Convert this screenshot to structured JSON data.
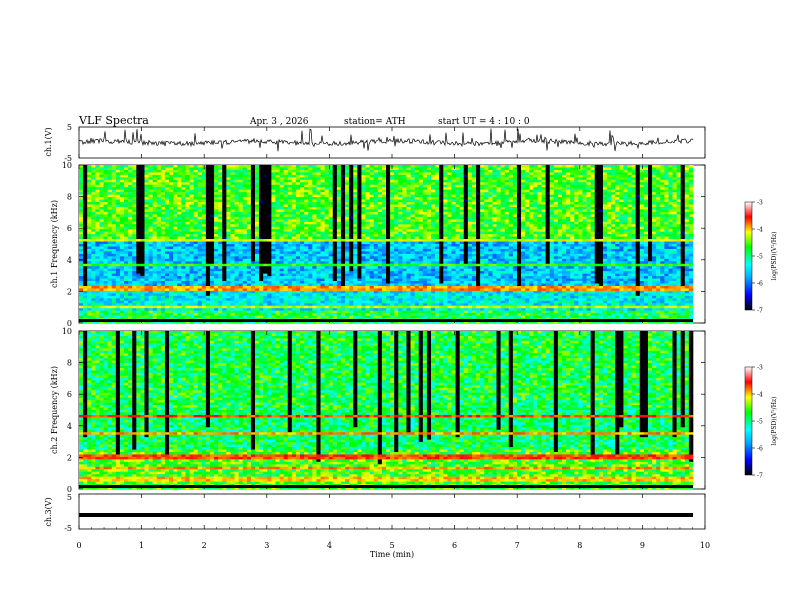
{
  "header": {
    "title": "VLF  Spectra",
    "date": "Apr. 3  , 2026",
    "station": "station= ATH",
    "start_ut": "start  UT  =   4  : 10 : 0"
  },
  "chart_data": [
    {
      "type": "line",
      "panel": "ch1-waveform",
      "ylabel": "ch.1(V)",
      "ylim": [
        -5,
        5
      ],
      "yticks": [
        "5",
        "-5"
      ],
      "xlim": [
        0,
        10
      ],
      "trace_color": "#000000",
      "trace_level": 0.0
    },
    {
      "type": "heatmap",
      "panel": "ch1-spectrogram",
      "ylabel": "ch.1 Frequency  (kHz)",
      "ylim": [
        0,
        10
      ],
      "yticks": [
        "0",
        "2",
        "4",
        "6",
        "8",
        "10"
      ],
      "xlim": [
        0,
        9.8
      ],
      "colorbar": {
        "label": "log(PSD)(V²/Hz)",
        "ticks": [
          "-3",
          "-4",
          "-5",
          "-6",
          "-7"
        ],
        "range": [
          -7,
          -3
        ],
        "colors": [
          "#000000",
          "#0000ff",
          "#00aaff",
          "#00ffff",
          "#00ff00",
          "#ffff00",
          "#ff0000",
          "#ffffff"
        ]
      }
    },
    {
      "type": "heatmap",
      "panel": "ch2-spectrogram",
      "ylabel": "ch.2 Frequency  (kHz)",
      "ylim": [
        0,
        10
      ],
      "yticks": [
        "0",
        "2",
        "4",
        "6",
        "8",
        "10"
      ],
      "xlim": [
        0,
        9.8
      ],
      "colorbar": {
        "label": "log(PSD)(V²/Hz)",
        "ticks": [
          "-3",
          "-4",
          "-5",
          "-6",
          "-7"
        ],
        "range": [
          -7,
          -3
        ],
        "colors": [
          "#000000",
          "#0000ff",
          "#00aaff",
          "#00ffff",
          "#00ff00",
          "#ffff00",
          "#ff0000",
          "#ffffff"
        ]
      }
    },
    {
      "type": "line",
      "panel": "ch3-waveform",
      "ylabel": "ch.3(V)",
      "ylim": [
        -5,
        5
      ],
      "yticks": [
        "5",
        "-5"
      ],
      "xlim": [
        0,
        10
      ],
      "trace_level": -1.0,
      "trace_color": "#000000"
    }
  ],
  "xaxis": {
    "label": "Time  (min)",
    "ticks": [
      "0",
      "1",
      "2",
      "3",
      "4",
      "5",
      "6",
      "7",
      "8",
      "9",
      "10"
    ],
    "range": [
      0,
      10
    ]
  }
}
